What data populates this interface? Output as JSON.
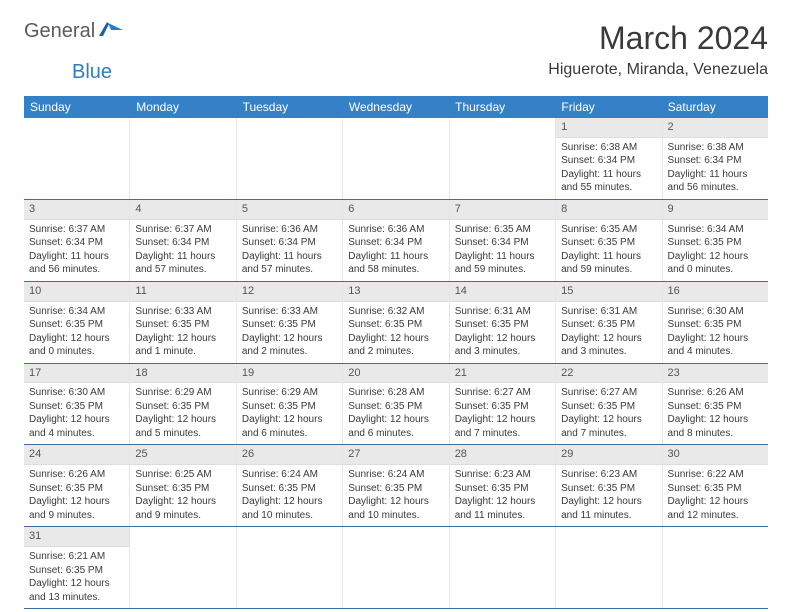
{
  "logo": {
    "part1": "General",
    "part2": "Blue"
  },
  "title": "March 2024",
  "location": "Higuerote, Miranda, Venezuela",
  "colors": {
    "header_bg": "#3481c7",
    "header_text": "#ffffff",
    "row_border": "#3a6fa8",
    "daynum_bg": "#e9e9e9",
    "text": "#3a3a3a",
    "logo_gray": "#5b5b5b",
    "logo_blue": "#2f7cc4"
  },
  "weekdays": [
    "Sunday",
    "Monday",
    "Tuesday",
    "Wednesday",
    "Thursday",
    "Friday",
    "Saturday"
  ],
  "weeks": [
    [
      {
        "n": "",
        "sr": "",
        "ss": "",
        "dl": ""
      },
      {
        "n": "",
        "sr": "",
        "ss": "",
        "dl": ""
      },
      {
        "n": "",
        "sr": "",
        "ss": "",
        "dl": ""
      },
      {
        "n": "",
        "sr": "",
        "ss": "",
        "dl": ""
      },
      {
        "n": "",
        "sr": "",
        "ss": "",
        "dl": ""
      },
      {
        "n": "1",
        "sr": "Sunrise: 6:38 AM",
        "ss": "Sunset: 6:34 PM",
        "dl": "Daylight: 11 hours and 55 minutes."
      },
      {
        "n": "2",
        "sr": "Sunrise: 6:38 AM",
        "ss": "Sunset: 6:34 PM",
        "dl": "Daylight: 11 hours and 56 minutes."
      }
    ],
    [
      {
        "n": "3",
        "sr": "Sunrise: 6:37 AM",
        "ss": "Sunset: 6:34 PM",
        "dl": "Daylight: 11 hours and 56 minutes."
      },
      {
        "n": "4",
        "sr": "Sunrise: 6:37 AM",
        "ss": "Sunset: 6:34 PM",
        "dl": "Daylight: 11 hours and 57 minutes."
      },
      {
        "n": "5",
        "sr": "Sunrise: 6:36 AM",
        "ss": "Sunset: 6:34 PM",
        "dl": "Daylight: 11 hours and 57 minutes."
      },
      {
        "n": "6",
        "sr": "Sunrise: 6:36 AM",
        "ss": "Sunset: 6:34 PM",
        "dl": "Daylight: 11 hours and 58 minutes."
      },
      {
        "n": "7",
        "sr": "Sunrise: 6:35 AM",
        "ss": "Sunset: 6:34 PM",
        "dl": "Daylight: 11 hours and 59 minutes."
      },
      {
        "n": "8",
        "sr": "Sunrise: 6:35 AM",
        "ss": "Sunset: 6:35 PM",
        "dl": "Daylight: 11 hours and 59 minutes."
      },
      {
        "n": "9",
        "sr": "Sunrise: 6:34 AM",
        "ss": "Sunset: 6:35 PM",
        "dl": "Daylight: 12 hours and 0 minutes."
      }
    ],
    [
      {
        "n": "10",
        "sr": "Sunrise: 6:34 AM",
        "ss": "Sunset: 6:35 PM",
        "dl": "Daylight: 12 hours and 0 minutes."
      },
      {
        "n": "11",
        "sr": "Sunrise: 6:33 AM",
        "ss": "Sunset: 6:35 PM",
        "dl": "Daylight: 12 hours and 1 minute."
      },
      {
        "n": "12",
        "sr": "Sunrise: 6:33 AM",
        "ss": "Sunset: 6:35 PM",
        "dl": "Daylight: 12 hours and 2 minutes."
      },
      {
        "n": "13",
        "sr": "Sunrise: 6:32 AM",
        "ss": "Sunset: 6:35 PM",
        "dl": "Daylight: 12 hours and 2 minutes."
      },
      {
        "n": "14",
        "sr": "Sunrise: 6:31 AM",
        "ss": "Sunset: 6:35 PM",
        "dl": "Daylight: 12 hours and 3 minutes."
      },
      {
        "n": "15",
        "sr": "Sunrise: 6:31 AM",
        "ss": "Sunset: 6:35 PM",
        "dl": "Daylight: 12 hours and 3 minutes."
      },
      {
        "n": "16",
        "sr": "Sunrise: 6:30 AM",
        "ss": "Sunset: 6:35 PM",
        "dl": "Daylight: 12 hours and 4 minutes."
      }
    ],
    [
      {
        "n": "17",
        "sr": "Sunrise: 6:30 AM",
        "ss": "Sunset: 6:35 PM",
        "dl": "Daylight: 12 hours and 4 minutes."
      },
      {
        "n": "18",
        "sr": "Sunrise: 6:29 AM",
        "ss": "Sunset: 6:35 PM",
        "dl": "Daylight: 12 hours and 5 minutes."
      },
      {
        "n": "19",
        "sr": "Sunrise: 6:29 AM",
        "ss": "Sunset: 6:35 PM",
        "dl": "Daylight: 12 hours and 6 minutes."
      },
      {
        "n": "20",
        "sr": "Sunrise: 6:28 AM",
        "ss": "Sunset: 6:35 PM",
        "dl": "Daylight: 12 hours and 6 minutes."
      },
      {
        "n": "21",
        "sr": "Sunrise: 6:27 AM",
        "ss": "Sunset: 6:35 PM",
        "dl": "Daylight: 12 hours and 7 minutes."
      },
      {
        "n": "22",
        "sr": "Sunrise: 6:27 AM",
        "ss": "Sunset: 6:35 PM",
        "dl": "Daylight: 12 hours and 7 minutes."
      },
      {
        "n": "23",
        "sr": "Sunrise: 6:26 AM",
        "ss": "Sunset: 6:35 PM",
        "dl": "Daylight: 12 hours and 8 minutes."
      }
    ],
    [
      {
        "n": "24",
        "sr": "Sunrise: 6:26 AM",
        "ss": "Sunset: 6:35 PM",
        "dl": "Daylight: 12 hours and 9 minutes."
      },
      {
        "n": "25",
        "sr": "Sunrise: 6:25 AM",
        "ss": "Sunset: 6:35 PM",
        "dl": "Daylight: 12 hours and 9 minutes."
      },
      {
        "n": "26",
        "sr": "Sunrise: 6:24 AM",
        "ss": "Sunset: 6:35 PM",
        "dl": "Daylight: 12 hours and 10 minutes."
      },
      {
        "n": "27",
        "sr": "Sunrise: 6:24 AM",
        "ss": "Sunset: 6:35 PM",
        "dl": "Daylight: 12 hours and 10 minutes."
      },
      {
        "n": "28",
        "sr": "Sunrise: 6:23 AM",
        "ss": "Sunset: 6:35 PM",
        "dl": "Daylight: 12 hours and 11 minutes."
      },
      {
        "n": "29",
        "sr": "Sunrise: 6:23 AM",
        "ss": "Sunset: 6:35 PM",
        "dl": "Daylight: 12 hours and 11 minutes."
      },
      {
        "n": "30",
        "sr": "Sunrise: 6:22 AM",
        "ss": "Sunset: 6:35 PM",
        "dl": "Daylight: 12 hours and 12 minutes."
      }
    ],
    [
      {
        "n": "31",
        "sr": "Sunrise: 6:21 AM",
        "ss": "Sunset: 6:35 PM",
        "dl": "Daylight: 12 hours and 13 minutes."
      },
      {
        "n": "",
        "sr": "",
        "ss": "",
        "dl": ""
      },
      {
        "n": "",
        "sr": "",
        "ss": "",
        "dl": ""
      },
      {
        "n": "",
        "sr": "",
        "ss": "",
        "dl": ""
      },
      {
        "n": "",
        "sr": "",
        "ss": "",
        "dl": ""
      },
      {
        "n": "",
        "sr": "",
        "ss": "",
        "dl": ""
      },
      {
        "n": "",
        "sr": "",
        "ss": "",
        "dl": ""
      }
    ]
  ]
}
